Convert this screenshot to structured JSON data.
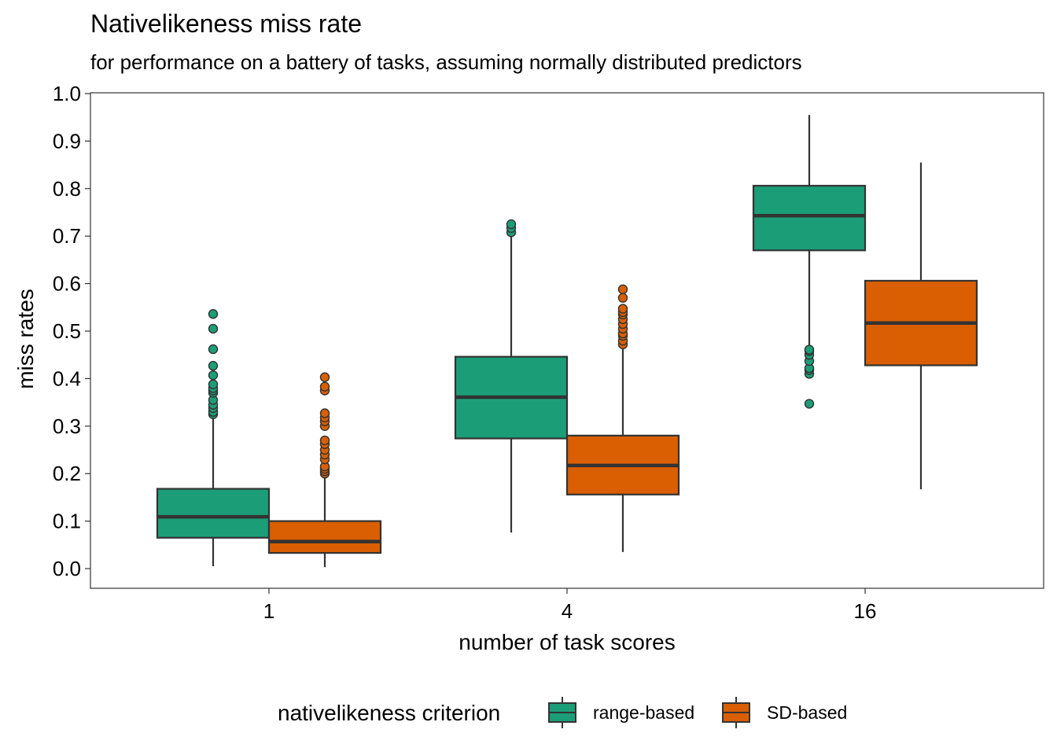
{
  "chart_data": {
    "type": "boxplot",
    "title": "Nativelikeness miss rate",
    "subtitle": "for performance on a battery of tasks, assuming normally distributed predictors",
    "xlabel": "number of task scores",
    "ylabel": "miss rates",
    "ylim": [
      -0.042,
      1.0
    ],
    "yticks": [
      "0.0",
      "0.1",
      "0.2",
      "0.3",
      "0.4",
      "0.5",
      "0.6",
      "0.7",
      "0.8",
      "0.9",
      "1.0"
    ],
    "categories": [
      "1",
      "4",
      "16"
    ],
    "legend": {
      "title": "nativelikeness criterion",
      "position": "bottom"
    },
    "grid": false,
    "series": [
      {
        "name": "range-based",
        "color": "#1B9E77",
        "boxes": [
          {
            "whisker_low": 0.005,
            "q1": 0.065,
            "median": 0.109,
            "q3": 0.168,
            "whisker_high": 0.322,
            "outliers": [
              0.325,
              0.33,
              0.338,
              0.345,
              0.355,
              0.37,
              0.375,
              0.38,
              0.388,
              0.407,
              0.427,
              0.462,
              0.505,
              0.536
            ]
          },
          {
            "whisker_low": 0.076,
            "q1": 0.274,
            "median": 0.361,
            "q3": 0.446,
            "whisker_high": 0.7,
            "outliers": [
              0.708,
              0.717,
              0.725
            ]
          },
          {
            "whisker_low": 0.465,
            "q1": 0.67,
            "median": 0.743,
            "q3": 0.806,
            "whisker_high": 0.955,
            "outliers": [
              0.347,
              0.41,
              0.418,
              0.422,
              0.437,
              0.45,
              0.458,
              0.461
            ]
          }
        ]
      },
      {
        "name": "SD-based",
        "color": "#D95F02",
        "boxes": [
          {
            "whisker_low": 0.003,
            "q1": 0.033,
            "median": 0.057,
            "q3": 0.1,
            "whisker_high": 0.196,
            "outliers": [
              0.2,
              0.205,
              0.21,
              0.215,
              0.23,
              0.24,
              0.25,
              0.262,
              0.27,
              0.3,
              0.31,
              0.318,
              0.327,
              0.375,
              0.383,
              0.403
            ]
          },
          {
            "whisker_low": 0.035,
            "q1": 0.156,
            "median": 0.217,
            "q3": 0.28,
            "whisker_high": 0.468,
            "outliers": [
              0.472,
              0.48,
              0.49,
              0.495,
              0.505,
              0.515,
              0.525,
              0.535,
              0.54,
              0.547,
              0.57,
              0.588
            ]
          },
          {
            "whisker_low": 0.167,
            "q1": 0.428,
            "median": 0.517,
            "q3": 0.606,
            "whisker_high": 0.855,
            "outliers": []
          }
        ]
      }
    ]
  }
}
